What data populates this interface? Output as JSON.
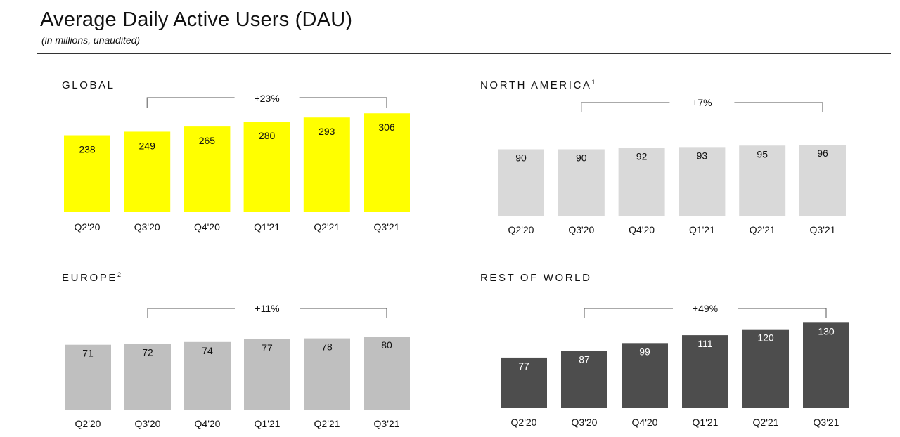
{
  "header": {
    "title": "Average Daily Active Users (DAU)",
    "subtitle": "(in millions, unaudited)"
  },
  "colors": {
    "global": "#ffff00",
    "north_america": "#d9d9d9",
    "europe": "#bfbfbf",
    "rest_of_world": "#4d4d4d",
    "bracket": "#555555"
  },
  "panels": [
    {
      "id": "global",
      "label": "GLOBAL",
      "sup": ""
    },
    {
      "id": "north-america",
      "label": "NORTH AMERICA",
      "sup": "1"
    },
    {
      "id": "europe",
      "label": "EUROPE",
      "sup": "2"
    },
    {
      "id": "rest-of-world",
      "label": "REST OF WORLD",
      "sup": ""
    }
  ],
  "chart_data": [
    {
      "type": "bar",
      "title": "GLOBAL",
      "categories": [
        "Q2'20",
        "Q3'20",
        "Q4'20",
        "Q1'21",
        "Q2'21",
        "Q3'21"
      ],
      "values": [
        238,
        249,
        265,
        280,
        293,
        306
      ],
      "growth": {
        "label": "+23%",
        "from": "Q3'20",
        "to": "Q3'21"
      },
      "color": "#ffff00",
      "label_color": "#111111"
    },
    {
      "type": "bar",
      "title": "NORTH AMERICA",
      "categories": [
        "Q2'20",
        "Q3'20",
        "Q4'20",
        "Q1'21",
        "Q2'21",
        "Q3'21"
      ],
      "values": [
        90,
        90,
        92,
        93,
        95,
        96
      ],
      "growth": {
        "label": "+7%",
        "from": "Q3'20",
        "to": "Q3'21"
      },
      "color": "#d9d9d9",
      "label_color": "#111111"
    },
    {
      "type": "bar",
      "title": "EUROPE",
      "categories": [
        "Q2'20",
        "Q3'20",
        "Q4'20",
        "Q1'21",
        "Q2'21",
        "Q3'21"
      ],
      "values": [
        71,
        72,
        74,
        77,
        78,
        80
      ],
      "growth": {
        "label": "+11%",
        "from": "Q3'20",
        "to": "Q3'21"
      },
      "color": "#bfbfbf",
      "label_color": "#111111"
    },
    {
      "type": "bar",
      "title": "REST OF WORLD",
      "categories": [
        "Q2'20",
        "Q3'20",
        "Q4'20",
        "Q1'21",
        "Q2'21",
        "Q3'21"
      ],
      "values": [
        77,
        87,
        99,
        111,
        120,
        130
      ],
      "growth": {
        "label": "+49%",
        "from": "Q3'20",
        "to": "Q3'21"
      },
      "color": "#4d4d4d",
      "label_color": "#ffffff"
    }
  ]
}
